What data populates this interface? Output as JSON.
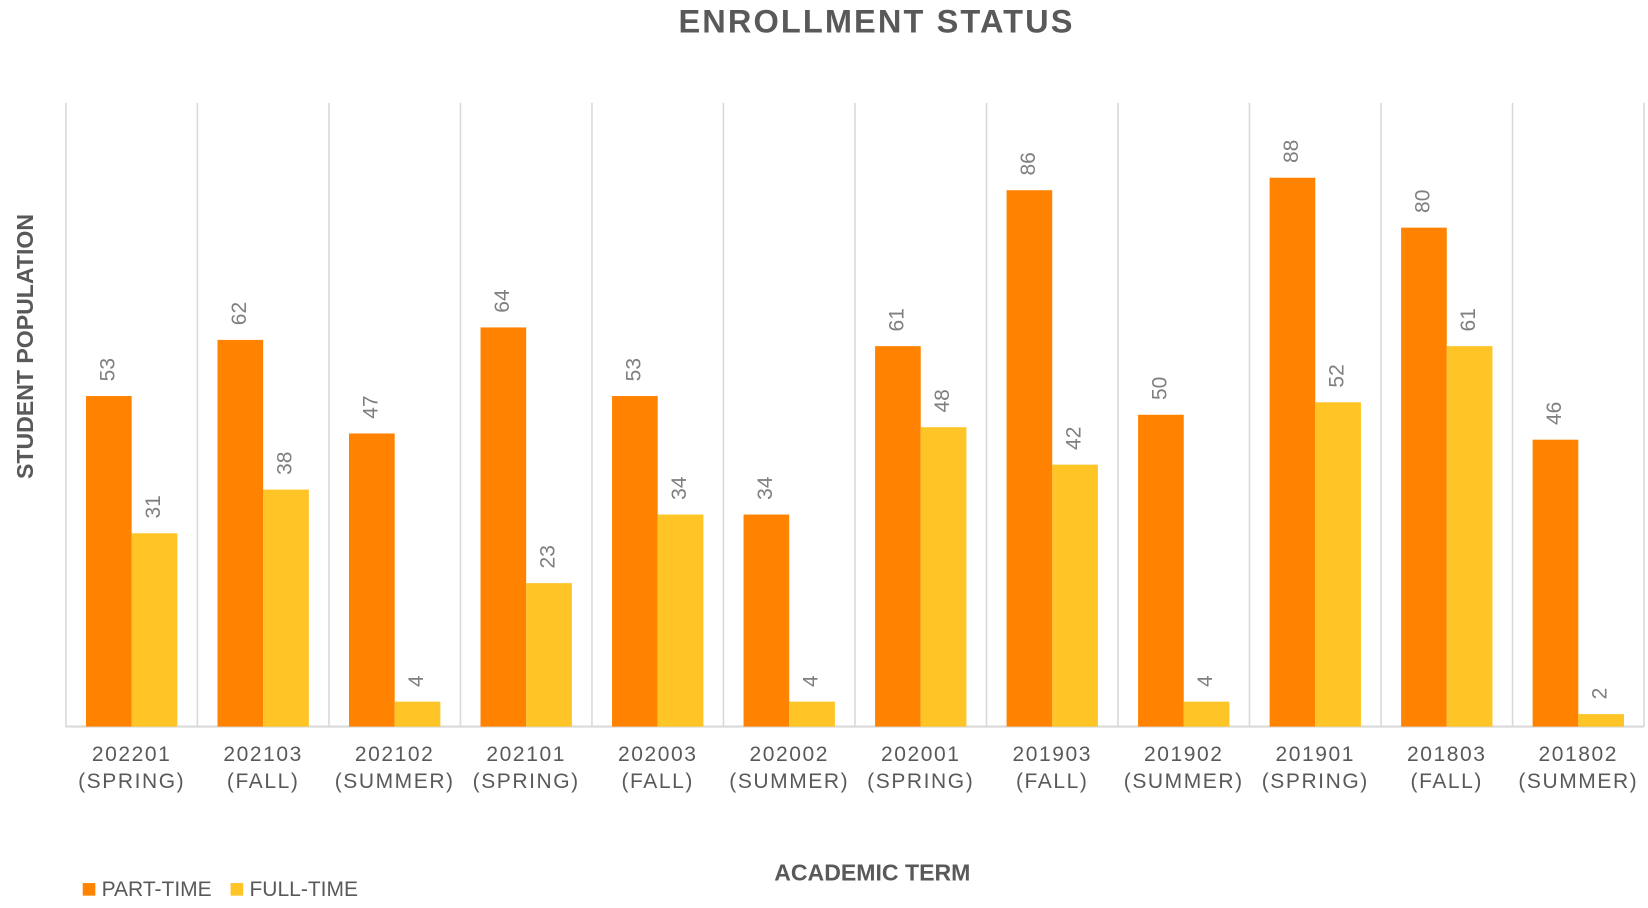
{
  "chart_data": {
    "type": "bar",
    "title": "ENROLLMENT STATUS",
    "x_label": "ACADEMIC TERM",
    "y_label": "STUDENT POPULATION",
    "categories": [
      "202201 (SPRING)",
      "202103 (FALL)",
      "202102 (SUMMER)",
      "202101 (SPRING)",
      "202003 (FALL)",
      "202002 (SUMMER)",
      "202001 (SPRING)",
      "201903 (FALL)",
      "201902 (SUMMER)",
      "201901 (SPRING)",
      "201803 (FALL)",
      "201802 (SUMMER)"
    ],
    "series": [
      {
        "name": "PART-TIME",
        "color": "#ff8300",
        "values": [
          53,
          62,
          47,
          64,
          53,
          34,
          61,
          86,
          50,
          88,
          80,
          46
        ]
      },
      {
        "name": "FULL-TIME",
        "color": "#ffc425",
        "values": [
          31,
          38,
          4,
          23,
          34,
          4,
          48,
          42,
          4,
          52,
          61,
          2
        ]
      }
    ],
    "ylim": [
      0,
      100
    ],
    "legend": "bottom-left"
  }
}
